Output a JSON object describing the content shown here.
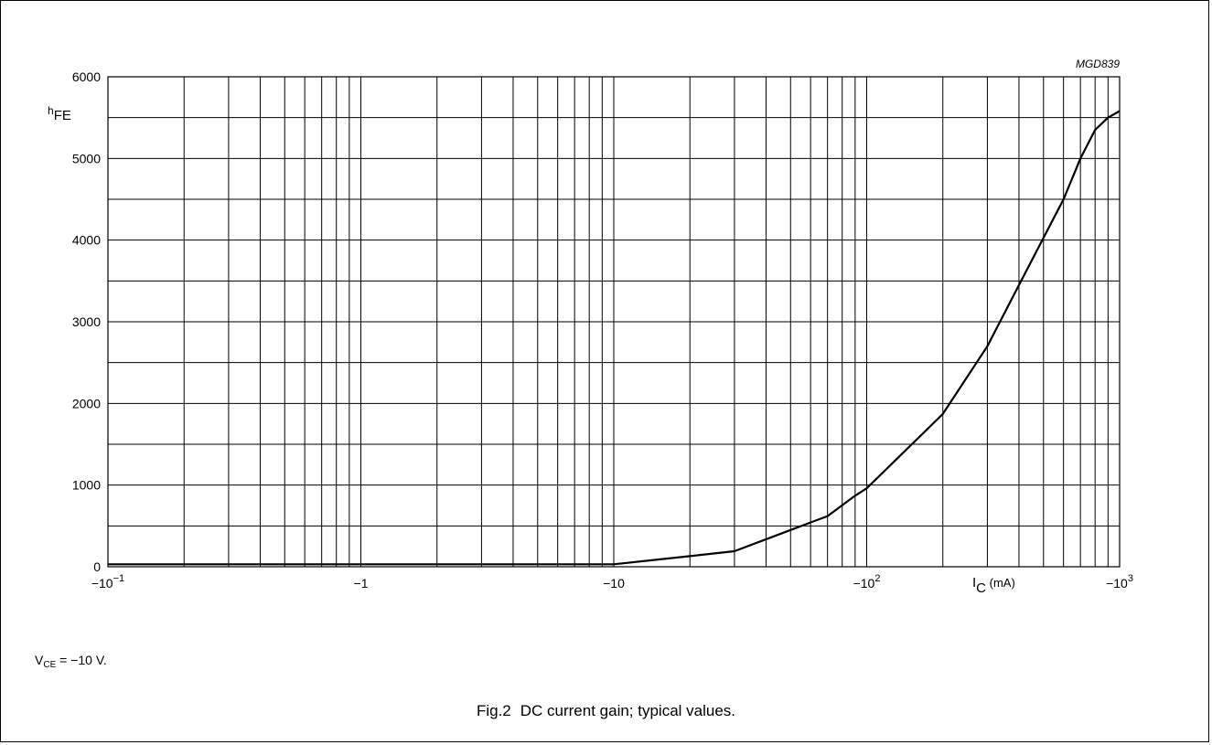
{
  "chart_data": {
    "type": "line",
    "code": "MGD839",
    "ylabel": {
      "main": "h",
      "sub": "FE"
    },
    "xlabel": {
      "main": "I",
      "sub": "C",
      "unit": " (mA)"
    },
    "x_scale": "log",
    "x_direction": "negative",
    "xlim": [
      -0.1,
      -1000
    ],
    "ylim": [
      0,
      6000
    ],
    "yticks": [
      0,
      1000,
      2000,
      3000,
      4000,
      5000,
      6000
    ],
    "ytick_labels": [
      "0",
      "1000",
      "2000",
      "3000",
      "4000",
      "5000",
      "6000"
    ],
    "xticks": [
      -0.1,
      -1,
      -10,
      -100,
      -1000
    ],
    "xtick_labels": [
      {
        "base": "−10",
        "exp": "−1"
      },
      {
        "base": "−1",
        "exp": ""
      },
      {
        "base": "−10",
        "exp": ""
      },
      {
        "base": "−10",
        "exp": "2"
      },
      {
        "base": "−10",
        "exp": "3"
      }
    ],
    "grid": true,
    "series": [
      {
        "x": [
          -0.1,
          -0.5,
          -1,
          -5,
          -10,
          -20,
          -30,
          -50,
          -70,
          -90,
          -100,
          -200,
          -300,
          -400,
          -600,
          -700,
          -800,
          -900,
          -1000
        ],
        "y": [
          30,
          30,
          30,
          30,
          30,
          130,
          190,
          450,
          620,
          870,
          960,
          1870,
          2700,
          3450,
          4500,
          5000,
          5350,
          5500,
          5580
        ]
      }
    ]
  },
  "condition": {
    "main": "V",
    "sub": "CE",
    "rest": " = −10 V."
  },
  "caption": {
    "fig": "Fig.2",
    "text": "DC current gain; typical values."
  }
}
